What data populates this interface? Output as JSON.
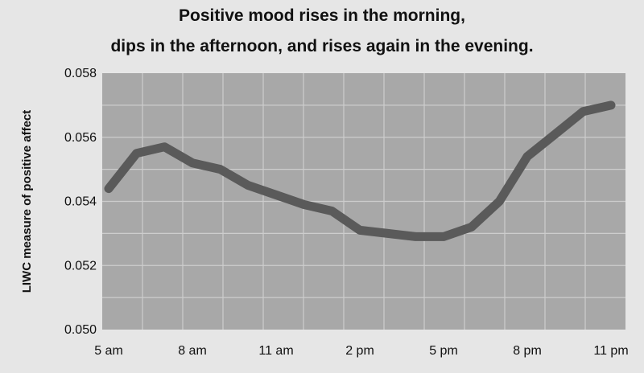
{
  "chart_data": {
    "type": "line",
    "title_line1": "Positive mood rises in the morning,",
    "title_line2": "dips in the afternoon, and rises again in the evening.",
    "xlabel": "",
    "ylabel": "LIWC measure of positive affect",
    "xlim": [
      5,
      23
    ],
    "ylim": [
      0.05,
      0.058
    ],
    "x_ticks": [
      {
        "value": 5,
        "label": "5 am"
      },
      {
        "value": 8,
        "label": "8 am"
      },
      {
        "value": 11,
        "label": "11 am"
      },
      {
        "value": 14,
        "label": "2 pm"
      },
      {
        "value": 17,
        "label": "5 pm"
      },
      {
        "value": 20,
        "label": "8 pm"
      },
      {
        "value": 23,
        "label": "11 pm"
      }
    ],
    "y_ticks": [
      "0.050",
      "0.052",
      "0.054",
      "0.056",
      "0.058"
    ],
    "grid": true,
    "colors": {
      "plot_bg": "#a8a8a8",
      "grid": "#cdcdcd",
      "line": "#5a5a5a",
      "page_bg": "#e6e6e6"
    },
    "series": [
      {
        "x": [
          5,
          6,
          7,
          8,
          9,
          10,
          11,
          12,
          13,
          14,
          15,
          16,
          17,
          18,
          19,
          20,
          21,
          22,
          23
        ],
        "values": [
          0.0544,
          0.0555,
          0.0557,
          0.0552,
          0.055,
          0.0545,
          0.0542,
          0.0539,
          0.0537,
          0.0531,
          0.053,
          0.0529,
          0.0529,
          0.0532,
          0.054,
          0.0554,
          0.0561,
          0.0568,
          0.057
        ]
      }
    ]
  }
}
